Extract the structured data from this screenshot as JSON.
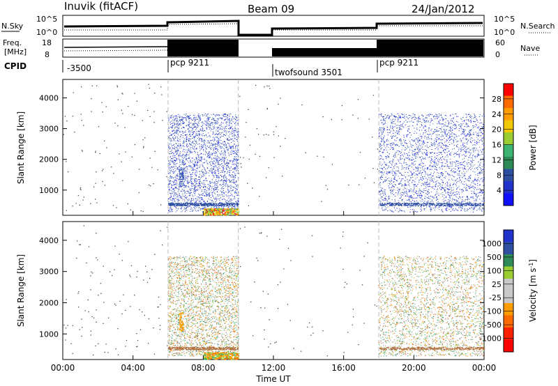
{
  "header": {
    "station": "Inuvik (fitACF)",
    "beam": "Beam 09",
    "date": "24/Jan/2012"
  },
  "panels": {
    "nsky": {
      "label": "N.Sky",
      "ticks_left": [
        "10^5",
        "10^0"
      ],
      "ticks_right": [
        "10^5",
        "10^0"
      ],
      "right_label": "N.Search"
    },
    "freq": {
      "label_top": "Freq.",
      "label_bottom": "[MHz]",
      "ticks_left": [
        "18",
        "8"
      ],
      "ticks_right": [
        "60",
        "0"
      ],
      "right_label": "Nave"
    },
    "cpid": {
      "label": "CPID",
      "segments": [
        "-3500",
        "pcp 9211",
        "twofsound 3501",
        "pcp 9211"
      ]
    }
  },
  "power_panel": {
    "ylabel": "Slant Range [km]",
    "cbar_label": "Power [dB]",
    "cbar_ticks": [
      "28",
      "24",
      "20",
      "16",
      "12",
      "8",
      "4"
    ],
    "cbar_colors": [
      "#ff0000",
      "#ff6a00",
      "#ff9c00",
      "#f2c800",
      "#9acd32",
      "#3cb371",
      "#2e8b57",
      "#2e4fa0",
      "#2233cc",
      "#1010ff"
    ]
  },
  "velocity_panel": {
    "ylabel": "Slant Range [km]",
    "cbar_label": "Velocity [m s",
    "cbar_label_sup": "-1",
    "cbar_label_end": "]",
    "cbar_ticks": [
      "1000",
      "500",
      "100",
      "25",
      "-25",
      "-100",
      "-500",
      "-1000"
    ],
    "cbar_colors": [
      "#2233cc",
      "#2e4fa0",
      "#2e8b57",
      "#9acd32",
      "#c8c8c8",
      "#c8c8c8",
      "#ff9c00",
      "#ff6a00",
      "#ff2000",
      "#ff0000"
    ]
  },
  "xaxis": {
    "label": "Time UT",
    "ticks": [
      "00:00",
      "04:00",
      "08:00",
      "12:00",
      "16:00",
      "20:00",
      "00:00"
    ]
  },
  "chart_data": [
    {
      "type": "scatter",
      "name": "power",
      "xlabel": "Time UT",
      "ylabel": "Slant Range [km]",
      "xlim": [
        0,
        24
      ],
      "ylim": [
        180,
        4600
      ],
      "yticks": [
        1000,
        2000,
        3000,
        4000
      ],
      "mode_blocks_hours": [
        [
          0,
          6,
          "-3500"
        ],
        [
          6,
          10,
          "pcp 9211"
        ],
        [
          12,
          18,
          "twofsound 3501"
        ],
        [
          18,
          24,
          "pcp 9211"
        ]
      ],
      "colorbar": {
        "label": "Power [dB]",
        "ticks": [
          28,
          24,
          20,
          16,
          12,
          8,
          4
        ]
      }
    },
    {
      "type": "scatter",
      "name": "velocity",
      "xlabel": "Time UT",
      "ylabel": "Slant Range [km]",
      "xlim": [
        0,
        24
      ],
      "ylim": [
        180,
        4600
      ],
      "yticks": [
        1000,
        2000,
        3000,
        4000
      ],
      "colorbar": {
        "label": "Velocity [m s-1]",
        "ticks": [
          1000,
          500,
          100,
          25,
          -25,
          -100,
          -500,
          -1000
        ]
      }
    }
  ]
}
